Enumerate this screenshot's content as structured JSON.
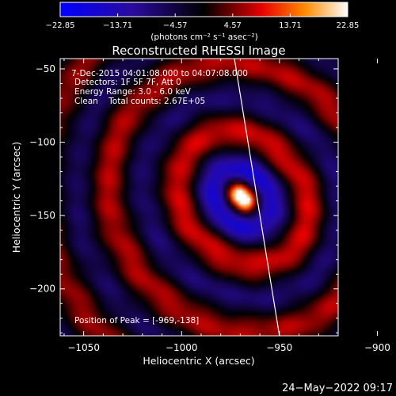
{
  "chart_data": {
    "type": "heatmap",
    "title": "Reconstructed RHESSI Image",
    "xlabel": "Heliocentric X (arcsec)",
    "ylabel": "Heliocentric Y (arcsec)",
    "xlim": [
      -1062,
      -920
    ],
    "ylim": [
      -232,
      -43
    ],
    "x_ticks": [
      -1050,
      -1000,
      -950,
      -900
    ],
    "y_ticks": [
      -50,
      -100,
      -150,
      -200
    ],
    "x_tick_labels": [
      "−1050",
      "−1000",
      "−950",
      "−900"
    ],
    "y_tick_labels": [
      "−50",
      "−100",
      "−150",
      "−200"
    ],
    "peak": [
      -969,
      -138
    ],
    "limb_line": [
      [
        -973,
        -43
      ],
      [
        -950,
        -232
      ]
    ],
    "annotations": [
      "7-Dec-2015 04:01:08.000 to 04:07:08.000",
      "Detectors: 1F 5F 7F, Att 0",
      "Energy Range: 3.0 - 6.0 keV",
      "Clean    Total counts: 2.67E+05"
    ],
    "peak_label": "Position of Peak = [-969,-138]",
    "colorbar": {
      "min": -22.85,
      "max": 22.85,
      "ticks": [
        -22.85,
        -13.71,
        -4.57,
        4.57,
        13.71,
        22.85
      ],
      "tick_labels": [
        "−22.85",
        "−13.71",
        "−4.57",
        "4.57",
        "13.71",
        "22.85"
      ],
      "units": "(photons cm⁻² s⁻¹ asec⁻²)"
    }
  },
  "timestamp": "24−May−2022 09:17"
}
